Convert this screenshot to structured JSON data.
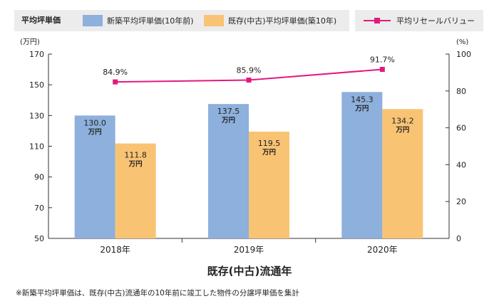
{
  "legend": {
    "title": "平均坪単価",
    "items": [
      {
        "label": "新築平均坪単価(10年前)",
        "color": "#8db0dc"
      },
      {
        "label": "既存(中古)平均坪単価(築10年)",
        "color": "#f9c374"
      }
    ],
    "line_item": {
      "label": "平均リセールバリュー",
      "color": "#e4197f"
    }
  },
  "chart_data": {
    "type": "bar",
    "title": "",
    "xlabel": "既存(中古)流通年",
    "categories": [
      "2018年",
      "2019年",
      "2020年"
    ],
    "series": [
      {
        "name": "新築平均坪単価(10年前)",
        "values": [
          130.0,
          137.5,
          145.3
        ],
        "labels": [
          "130.0",
          "137.5",
          "145.3"
        ],
        "color": "#8db0dc"
      },
      {
        "name": "既存(中古)平均坪単価(築10年)",
        "values": [
          111.8,
          119.5,
          134.2
        ],
        "labels": [
          "111.8",
          "119.5",
          "134.2"
        ],
        "color": "#f9c374"
      }
    ],
    "value_unit_label": "万円",
    "line_series": {
      "name": "平均リセールバリュー",
      "values": [
        84.9,
        85.9,
        91.7
      ],
      "labels": [
        "84.9%",
        "85.9%",
        "91.7%"
      ],
      "color": "#e4197f"
    },
    "y_left": {
      "unit": "(万円)",
      "min": 50,
      "max": 170,
      "ticks": [
        50,
        70,
        90,
        110,
        130,
        150,
        170
      ]
    },
    "y_right": {
      "unit": "(%)",
      "min": 0,
      "max": 100,
      "ticks": [
        0,
        20,
        40,
        60,
        80,
        100
      ]
    }
  },
  "footnote": "※新築平均坪単価は、既存(中古)流通年の10年前に竣工した物件の分譲坪単価を集計"
}
